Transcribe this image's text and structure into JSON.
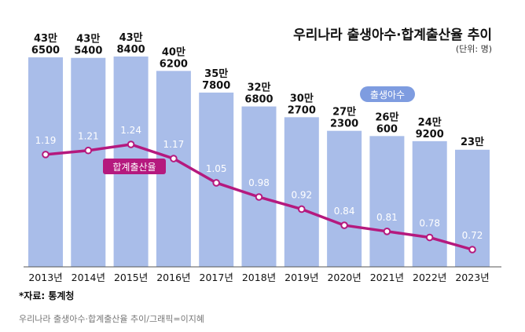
{
  "header": {
    "title": "우리나라 출생아수·합계출산율 추이",
    "unit": "(단위: 명)"
  },
  "footer": {
    "source": "*자료: 통계청",
    "credit": "우리나라 출생아수·합계출산율 추이/그래픽=이지혜"
  },
  "colors": {
    "bar": "#a9bde9",
    "line": "#b5197e",
    "point_fill": "#ffffff",
    "label_value": "#ffffff",
    "text": "#111111"
  },
  "chart_data": {
    "type": "bar",
    "categories": [
      "2013년",
      "2014년",
      "2015년",
      "2016년",
      "2017년",
      "2018년",
      "2019년",
      "2020년",
      "2021년",
      "2022년",
      "2023년"
    ],
    "series": [
      {
        "name": "출생아수",
        "type": "bar",
        "values": [
          436500,
          435400,
          438400,
          406200,
          357800,
          326800,
          302700,
          272300,
          260600,
          249200,
          230000
        ],
        "labels": [
          [
            "43만",
            "6500"
          ],
          [
            "43만",
            "5400"
          ],
          [
            "43만",
            "8400"
          ],
          [
            "40만",
            "6200"
          ],
          [
            "35만",
            "7800"
          ],
          [
            "32만",
            "6800"
          ],
          [
            "30만",
            "2700"
          ],
          [
            "27만",
            "2300"
          ],
          [
            "26만",
            "600"
          ],
          [
            "24만",
            "9200"
          ],
          [
            "23만",
            ""
          ]
        ]
      },
      {
        "name": "합계출산율",
        "type": "line",
        "values": [
          1.19,
          1.21,
          1.24,
          1.17,
          1.05,
          0.98,
          0.92,
          0.84,
          0.81,
          0.78,
          0.72
        ],
        "labels": [
          "1.19",
          "1.21",
          "1.24",
          "1.17",
          "1.05",
          "0.98",
          "0.92",
          "0.84",
          "0.81",
          "0.78",
          "0.72"
        ]
      }
    ],
    "annotations": [
      "출생아수",
      "합계출산율"
    ]
  }
}
